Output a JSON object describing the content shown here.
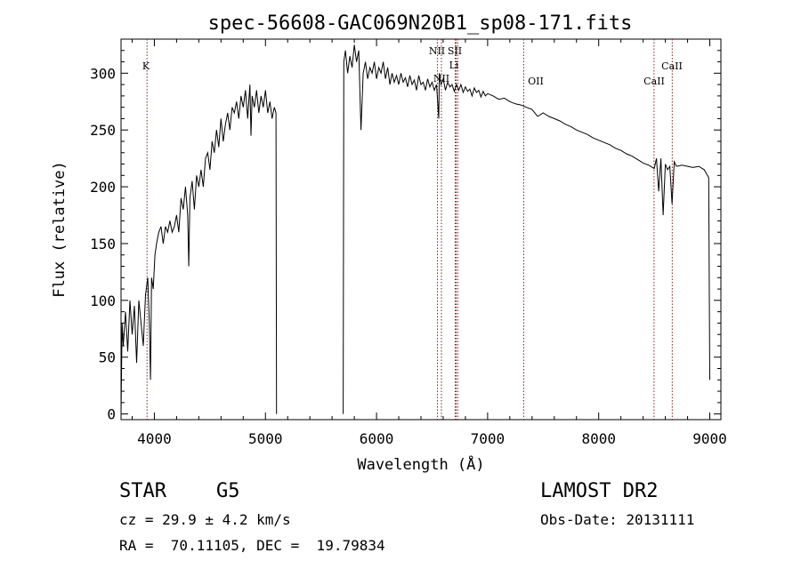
{
  "chart_data": {
    "type": "line",
    "title": "spec-56608-GAC069N20B1_sp08-171.fits",
    "xlabel": "Wavelength (Å)",
    "ylabel": "Flux (relative)",
    "xlim": [
      3700,
      9100
    ],
    "ylim": [
      -5,
      330
    ],
    "xticks": [
      "4000",
      "5000",
      "6000",
      "7000",
      "8000",
      "9000"
    ],
    "xtick_values": [
      4000,
      5000,
      6000,
      7000,
      8000,
      9000
    ],
    "yticks": [
      "0",
      "50",
      "100",
      "150",
      "200",
      "250",
      "300"
    ],
    "ytick_values": [
      0,
      50,
      100,
      150,
      200,
      250,
      300
    ],
    "grid": false,
    "line_color": "#000000",
    "marker_color": "#8b1a1a",
    "series": [
      {
        "segments": [
          [
            [
              3700,
              0
            ],
            [
              3710,
              80
            ],
            [
              3720,
              60
            ],
            [
              3740,
              90
            ],
            [
              3760,
              55
            ],
            [
              3780,
              100
            ],
            [
              3800,
              70
            ],
            [
              3820,
              95
            ],
            [
              3840,
              45
            ],
            [
              3860,
              100
            ],
            [
              3880,
              80
            ],
            [
              3900,
              60
            ],
            [
              3920,
              105
            ],
            [
              3940,
              120
            ],
            [
              3955,
              80
            ],
            [
              3965,
              30
            ],
            [
              3975,
              120
            ],
            [
              3990,
              110
            ],
            [
              4005,
              140
            ],
            [
              4020,
              150
            ],
            [
              4040,
              160
            ],
            [
              4060,
              165
            ],
            [
              4080,
              150
            ],
            [
              4100,
              165
            ],
            [
              4120,
              160
            ],
            [
              4140,
              170
            ],
            [
              4160,
              160
            ],
            [
              4180,
              165
            ],
            [
              4200,
              175
            ],
            [
              4220,
              160
            ],
            [
              4240,
              190
            ],
            [
              4260,
              180
            ],
            [
              4280,
              200
            ],
            [
              4300,
              175
            ],
            [
              4310,
              130
            ],
            [
              4320,
              190
            ],
            [
              4340,
              205
            ],
            [
              4360,
              180
            ],
            [
              4380,
              210
            ],
            [
              4400,
              200
            ],
            [
              4420,
              215
            ],
            [
              4440,
              200
            ],
            [
              4460,
              225
            ],
            [
              4480,
              230
            ],
            [
              4500,
              215
            ],
            [
              4520,
              240
            ],
            [
              4540,
              230
            ],
            [
              4560,
              250
            ],
            [
              4580,
              235
            ],
            [
              4600,
              260
            ],
            [
              4620,
              240
            ],
            [
              4640,
              255
            ],
            [
              4660,
              265
            ],
            [
              4680,
              250
            ],
            [
              4700,
              270
            ],
            [
              4720,
              265
            ],
            [
              4740,
              275
            ],
            [
              4760,
              260
            ],
            [
              4780,
              280
            ],
            [
              4800,
              270
            ],
            [
              4820,
              285
            ],
            [
              4840,
              260
            ],
            [
              4860,
              290
            ],
            [
              4870,
              245
            ],
            [
              4880,
              280
            ],
            [
              4900,
              270
            ],
            [
              4920,
              285
            ],
            [
              4940,
              265
            ],
            [
              4960,
              280
            ],
            [
              4980,
              270
            ],
            [
              5000,
              285
            ],
            [
              5020,
              265
            ],
            [
              5040,
              275
            ],
            [
              5060,
              260
            ],
            [
              5080,
              270
            ],
            [
              5095,
              265
            ],
            [
              5100,
              0
            ]
          ],
          [
            [
              5700,
              0
            ],
            [
              5705,
              310
            ],
            [
              5720,
              320
            ],
            [
              5740,
              300
            ],
            [
              5760,
              315
            ],
            [
              5780,
              305
            ],
            [
              5800,
              325
            ],
            [
              5820,
              310
            ],
            [
              5840,
              320
            ],
            [
              5860,
              250
            ],
            [
              5880,
              300
            ],
            [
              5900,
              310
            ],
            [
              5920,
              295
            ],
            [
              5940,
              305
            ],
            [
              5960,
              300
            ],
            [
              5980,
              310
            ],
            [
              6000,
              295
            ],
            [
              6020,
              305
            ],
            [
              6040,
              300
            ],
            [
              6060,
              310
            ],
            [
              6080,
              295
            ],
            [
              6100,
              305
            ],
            [
              6120,
              290
            ],
            [
              6140,
              300
            ],
            [
              6160,
              292
            ],
            [
              6180,
              298
            ],
            [
              6200,
              290
            ],
            [
              6220,
              300
            ],
            [
              6240,
              292
            ],
            [
              6260,
              296
            ],
            [
              6280,
              288
            ],
            [
              6300,
              298
            ],
            [
              6320,
              290
            ],
            [
              6340,
              294
            ],
            [
              6360,
              285
            ],
            [
              6380,
              298
            ],
            [
              6400,
              290
            ],
            [
              6420,
              292
            ],
            [
              6440,
              285
            ],
            [
              6460,
              295
            ],
            [
              6480,
              288
            ],
            [
              6500,
              292
            ],
            [
              6520,
              285
            ],
            [
              6540,
              290
            ],
            [
              6560,
              260
            ],
            [
              6565,
              300
            ],
            [
              6580,
              290
            ],
            [
              6600,
              295
            ],
            [
              6620,
              285
            ],
            [
              6640,
              292
            ],
            [
              6660,
              288
            ],
            [
              6680,
              290
            ],
            [
              6700,
              284
            ],
            [
              6720,
              290
            ],
            [
              6740,
              285
            ],
            [
              6760,
              290
            ],
            [
              6780,
              283
            ],
            [
              6800,
              288
            ],
            [
              6820,
              284
            ],
            [
              6840,
              286
            ],
            [
              6860,
              280
            ],
            [
              6880,
              287
            ],
            [
              6900,
              283
            ],
            [
              6920,
              285
            ],
            [
              6940,
              279
            ],
            [
              6960,
              284
            ],
            [
              6980,
              280
            ],
            [
              7000,
              282
            ],
            [
              7050,
              280
            ],
            [
              7100,
              277
            ],
            [
              7150,
              278
            ],
            [
              7200,
              275
            ],
            [
              7250,
              273
            ],
            [
              7300,
              272
            ],
            [
              7350,
              270
            ],
            [
              7400,
              268
            ],
            [
              7450,
              262
            ],
            [
              7500,
              265
            ],
            [
              7550,
              262
            ],
            [
              7600,
              260
            ],
            [
              7650,
              258
            ],
            [
              7700,
              255
            ],
            [
              7750,
              253
            ],
            [
              7800,
              250
            ],
            [
              7850,
              248
            ],
            [
              7900,
              246
            ],
            [
              7950,
              243
            ],
            [
              8000,
              241
            ],
            [
              8050,
              239
            ],
            [
              8100,
              237
            ],
            [
              8150,
              234
            ],
            [
              8200,
              232
            ],
            [
              8250,
              229
            ],
            [
              8300,
              227
            ],
            [
              8350,
              224
            ],
            [
              8400,
              221
            ],
            [
              8450,
              219
            ],
            [
              8500,
              216
            ],
            [
              8520,
              225
            ],
            [
              8540,
              196
            ],
            [
              8560,
              225
            ],
            [
              8580,
              175
            ],
            [
              8600,
              220
            ],
            [
              8620,
              215
            ],
            [
              8640,
              218
            ],
            [
              8660,
              185
            ],
            [
              8680,
              222
            ],
            [
              8700,
              218
            ],
            [
              8750,
              219
            ],
            [
              8800,
              218
            ],
            [
              8850,
              217
            ],
            [
              8900,
              218
            ],
            [
              8950,
              215
            ],
            [
              8990,
              208
            ],
            [
              9000,
              30
            ]
          ]
        ]
      }
    ],
    "lines": [
      {
        "label": "K",
        "x": 3934
      },
      {
        "label": "NII",
        "x": 6548
      },
      {
        "label": "NII",
        "x": 6584
      },
      {
        "label": "SII",
        "x": 6717
      },
      {
        "label": "SII",
        "x": 6731
      },
      {
        "label": "Li",
        "x": 6708
      },
      {
        "label": "OII",
        "x": 7325
      },
      {
        "label": "CaII",
        "x": 8498
      },
      {
        "label": "CaII",
        "x": 8662
      }
    ],
    "line_labels": {
      "k": "K",
      "nii_top": "NII",
      "sii_top": "SII",
      "nii_low": "NII",
      "li": "Li",
      "oii": "OII",
      "caii_a": "CaII",
      "caii_b": "CaII"
    }
  },
  "info": {
    "class": "STAR",
    "subclass": "G5",
    "survey": "LAMOST DR2",
    "cz": "cz = 29.9 ± 4.2 km/s",
    "obs_date": "Obs-Date: 20131111",
    "coords": "RA =  70.11105, DEC =  19.79834"
  }
}
